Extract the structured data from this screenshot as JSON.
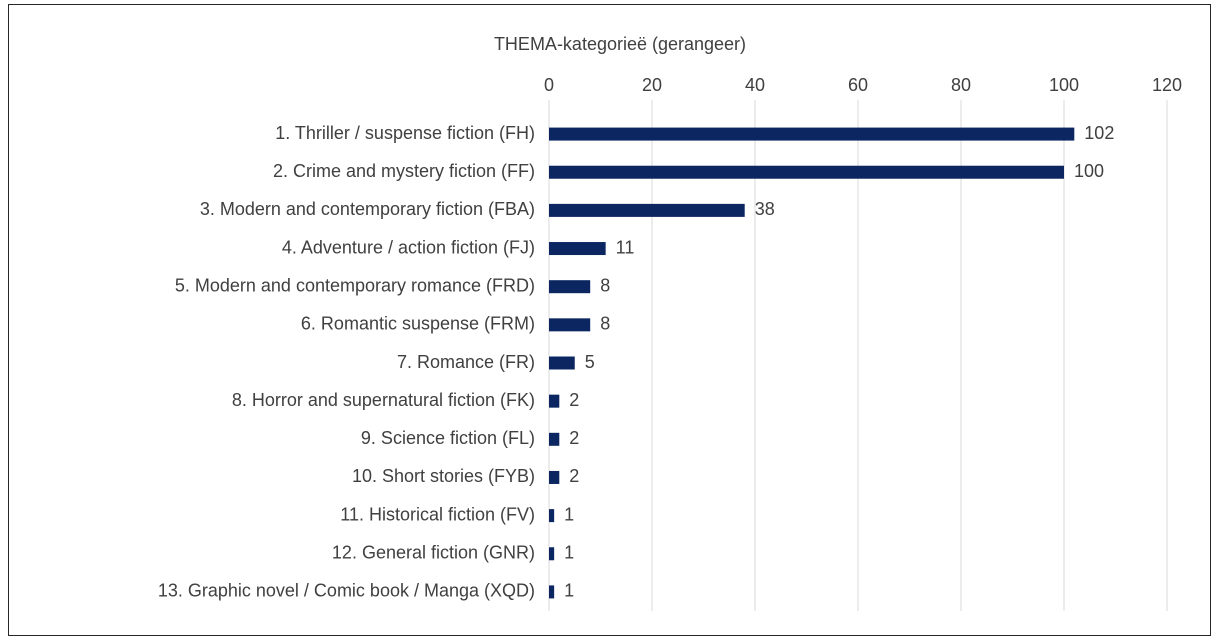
{
  "chart_data": {
    "type": "bar",
    "orientation": "horizontal",
    "title": "THEMA-kategorieë (gerangeer)",
    "categories": [
      "1. Thriller / suspense fiction (FH)",
      "2. Crime and mystery fiction (FF)",
      "3. Modern and contemporary fiction (FBA)",
      "4. Adventure / action fiction (FJ)",
      "5. Modern and contemporary romance (FRD)",
      "6. Romantic suspense (FRM)",
      "7. Romance (FR)",
      "8. Horror and supernatural fiction (FK)",
      "9. Science fiction (FL)",
      "10. Short stories (FYB)",
      "11. Historical fiction (FV)",
      "12. General fiction (GNR)",
      "13. Graphic novel / Comic book / Manga (XQD)"
    ],
    "values": [
      102,
      100,
      38,
      11,
      8,
      8,
      5,
      2,
      2,
      2,
      1,
      1,
      1
    ],
    "color": "#0b2660",
    "xlim": [
      0,
      120
    ],
    "xticks": [
      0,
      20,
      40,
      60,
      80,
      100,
      120
    ],
    "grid": true
  }
}
